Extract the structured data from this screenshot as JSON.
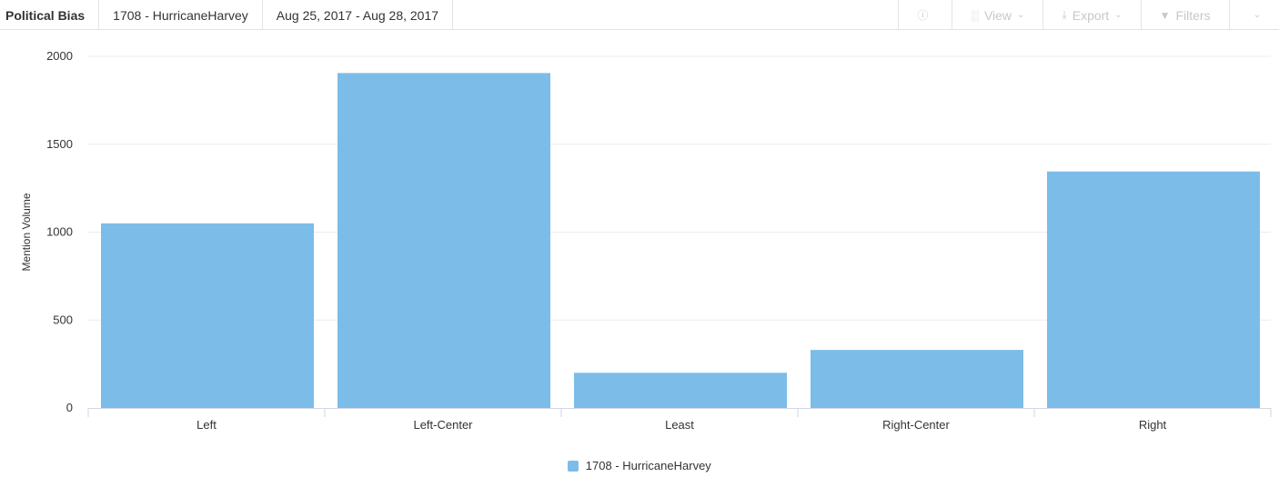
{
  "header": {
    "title": "Political Bias",
    "query": "1708 - HurricaneHarvey",
    "date_range": "Aug 25, 2017 - Aug 28, 2017",
    "tools": [
      {
        "label": "",
        "icon": "info-icon"
      },
      {
        "label": "View",
        "icon": "bar-chart-icon"
      },
      {
        "label": "Export",
        "icon": "download-icon"
      },
      {
        "label": "Filters",
        "icon": "filter-icon"
      },
      {
        "label": "",
        "icon": "chevron-down-icon"
      }
    ]
  },
  "chart_data": {
    "type": "bar",
    "categories": [
      "Left",
      "Left-Center",
      "Least",
      "Right-Center",
      "Right"
    ],
    "series": [
      {
        "name": "1708 - HurricaneHarvey",
        "values": [
          1050,
          1905,
          200,
          330,
          1345
        ],
        "color": "#7cbce8"
      }
    ],
    "ylabel": "Mention Volume",
    "yticks": [
      0,
      500,
      1000,
      1500,
      2000
    ],
    "ylim": [
      0,
      2000
    ],
    "grid": true,
    "legend_position": "bottom-center"
  }
}
